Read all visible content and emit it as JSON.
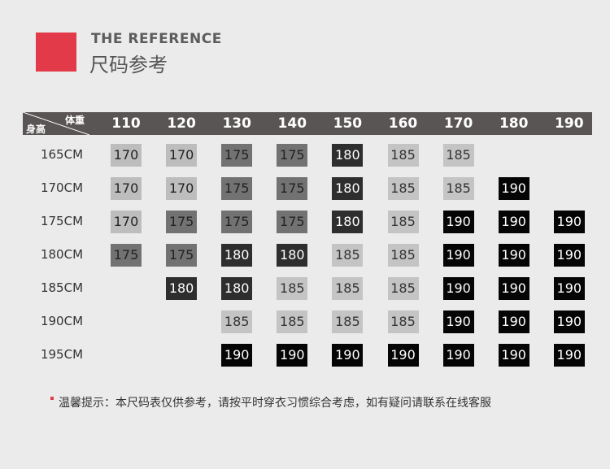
{
  "title": {
    "en": "THE REFERENCE",
    "cn": "尺码参考"
  },
  "table": {
    "corner_weight": "体重",
    "corner_height": "身高",
    "columns": [
      "110",
      "120",
      "130",
      "140",
      "150",
      "160",
      "170",
      "180",
      "190"
    ],
    "rows": [
      {
        "label": "165CM",
        "values": [
          "170",
          "170",
          "175",
          "175",
          "180",
          "185",
          "185",
          null,
          null
        ]
      },
      {
        "label": "170CM",
        "values": [
          "170",
          "170",
          "175",
          "175",
          "180",
          "185",
          "185",
          "190",
          null
        ]
      },
      {
        "label": "175CM",
        "values": [
          "170",
          "175",
          "175",
          "175",
          "180",
          "185",
          "190",
          "190",
          "190"
        ]
      },
      {
        "label": "180CM",
        "values": [
          "175",
          "175",
          "180",
          "180",
          "185",
          "185",
          "190",
          "190",
          "190"
        ]
      },
      {
        "label": "185CM",
        "values": [
          null,
          "180",
          "180",
          "185",
          "185",
          "185",
          "190",
          "190",
          "190"
        ]
      },
      {
        "label": "190CM",
        "values": [
          null,
          null,
          "185",
          "185",
          "185",
          "185",
          "190",
          "190",
          "190"
        ]
      },
      {
        "label": "195CM",
        "values": [
          null,
          null,
          "190",
          "190",
          "190",
          "190",
          "190",
          "190",
          "190"
        ]
      }
    ]
  },
  "size_colors": {
    "170": {
      "bg": "#bdbdbd",
      "fg": "#222222"
    },
    "175": {
      "bg": "#727272",
      "fg": "#222222"
    },
    "180": {
      "bg": "#2e2e2e",
      "fg": "#ffffff"
    },
    "185": {
      "bg": "#c4c4c4",
      "fg": "#333333"
    },
    "190": {
      "bg": "#050505",
      "fg": "#ffffff"
    }
  },
  "accent": "#e23a48",
  "note": "温馨提示：本尺码表仅供参考，请按平时穿衣习惯综合考虑，如有疑问请联系在线客服"
}
